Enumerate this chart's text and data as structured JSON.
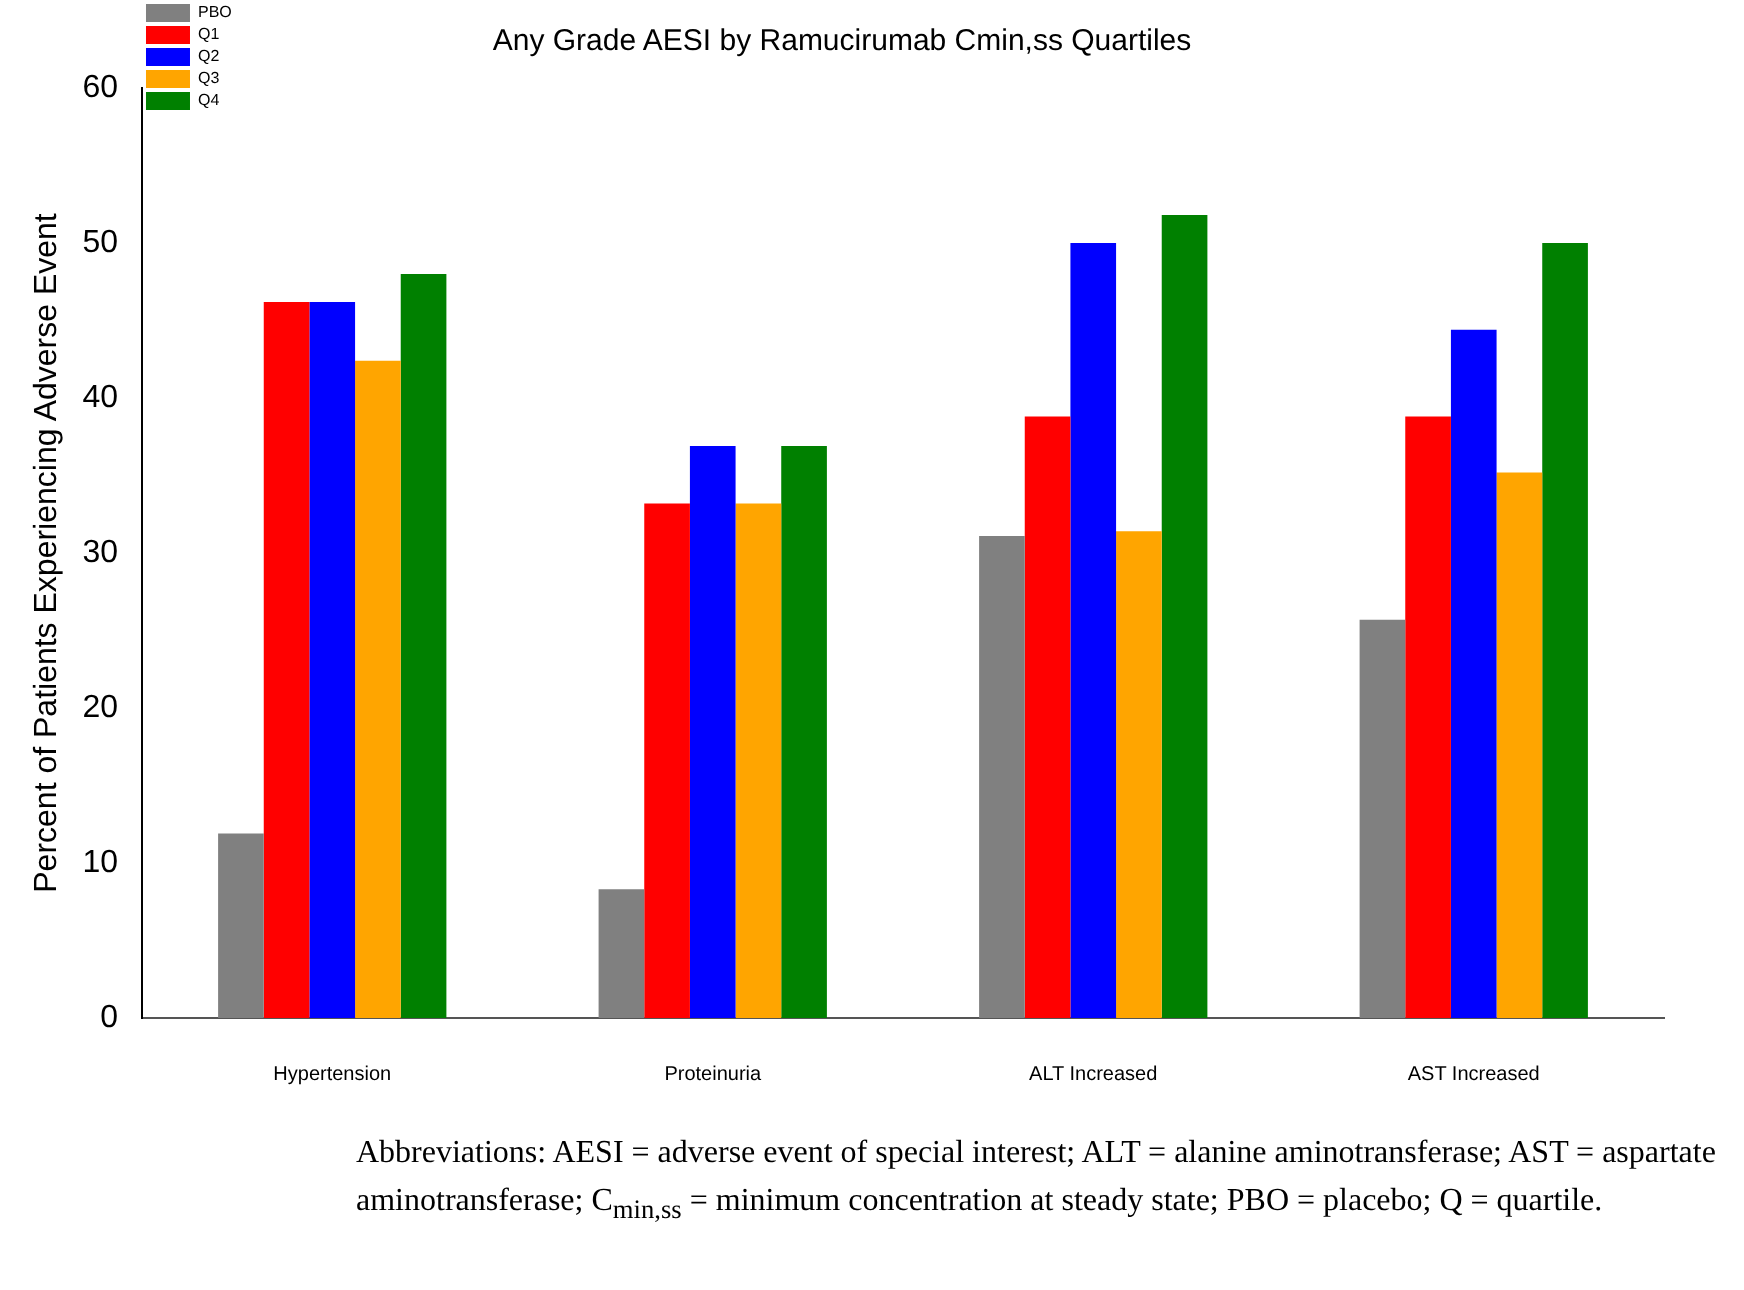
{
  "chart_data": {
    "type": "bar",
    "title": "Any Grade AESI by Ramucirumab Cmin,ss Quartiles",
    "ylabel": "Percent of Patients Experiencing Adverse Event",
    "categories": [
      "Hypertension",
      "Proteinuria",
      "ALT Increased",
      "AST Increased"
    ],
    "series": [
      {
        "name": "PBO",
        "color": "#808080",
        "values": [
          11.9,
          8.3,
          31.1,
          25.7
        ]
      },
      {
        "name": "Q1",
        "color": "#ff0000",
        "values": [
          46.2,
          33.2,
          38.8,
          38.8
        ]
      },
      {
        "name": "Q2",
        "color": "#0000ff",
        "values": [
          46.2,
          36.9,
          50.0,
          44.4
        ]
      },
      {
        "name": "Q3",
        "color": "#ffa500",
        "values": [
          42.4,
          33.2,
          31.4,
          35.2
        ]
      },
      {
        "name": "Q4",
        "color": "#008000",
        "values": [
          48.0,
          36.9,
          51.8,
          50.0
        ]
      }
    ],
    "ylim": [
      0,
      60
    ],
    "yticks": [
      0,
      10,
      20,
      30,
      40,
      50,
      60
    ],
    "grid": false,
    "legend": "top left",
    "annotations": [
      "Abbreviations:  AESI = adverse event of special interest; ALT = alanine aminotransferase; AST = aspartate aminotransferase; C$_{min,ss}$ = minimum concentration at steady state; PBO = placebo; Q = quartile."
    ]
  }
}
